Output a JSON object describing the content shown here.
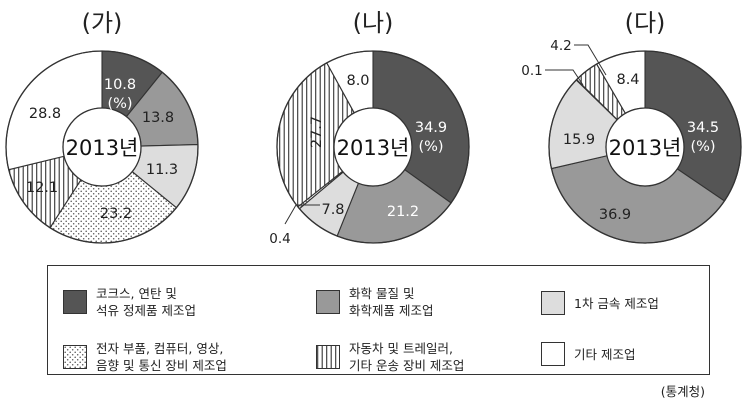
{
  "chart_data": [
    {
      "type": "pie",
      "title": "(가)",
      "center_label": "2013년",
      "unit_label": "(%)",
      "slices": [
        {
          "category": "coke_petroleum",
          "value": 10.8
        },
        {
          "category": "chemical",
          "value": 13.8
        },
        {
          "category": "primary_metal",
          "value": 11.3
        },
        {
          "category": "electronic",
          "value": 23.2
        },
        {
          "category": "automobile",
          "value": 12.1
        },
        {
          "category": "other",
          "value": 28.8
        }
      ]
    },
    {
      "type": "pie",
      "title": "(나)",
      "center_label": "2013년",
      "unit_label": "(%)",
      "slices": [
        {
          "category": "coke_petroleum",
          "value": 34.9
        },
        {
          "category": "chemical",
          "value": 21.2
        },
        {
          "category": "primary_metal",
          "value": 7.8
        },
        {
          "category": "electronic",
          "value": 0.4
        },
        {
          "category": "automobile",
          "value": 27.7
        },
        {
          "category": "other",
          "value": 8.0
        }
      ]
    },
    {
      "type": "pie",
      "title": "(다)",
      "center_label": "2013년",
      "unit_label": "(%)",
      "slices": [
        {
          "category": "coke_petroleum",
          "value": 34.5
        },
        {
          "category": "chemical",
          "value": 36.9
        },
        {
          "category": "primary_metal",
          "value": 15.9
        },
        {
          "category": "electronic",
          "value": 0.1
        },
        {
          "category": "automobile",
          "value": 4.2
        },
        {
          "category": "other",
          "value": 8.4
        }
      ]
    }
  ],
  "legend": [
    {
      "key": "coke_petroleum",
      "label_line1": "코크스, 연탄 및",
      "label_line2": "석유 정제품 제조업",
      "fill": "dark"
    },
    {
      "key": "chemical",
      "label_line1": "화학 물질 및",
      "label_line2": "화학제품 제조업",
      "fill": "medium"
    },
    {
      "key": "primary_metal",
      "label_line1": "1차 금속 제조업",
      "label_line2": "",
      "fill": "light"
    },
    {
      "key": "electronic",
      "label_line1": "전자 부품, 컴퓨터, 영상,",
      "label_line2": "음향 및 통신 장비 제조업",
      "fill": "dots"
    },
    {
      "key": "automobile",
      "label_line1": "자동차 및 트레일러,",
      "label_line2": "기타 운송 장비 제조업",
      "fill": "vlines"
    },
    {
      "key": "other",
      "label_line1": "기타 제조업",
      "label_line2": "",
      "fill": "white"
    }
  ],
  "colors": {
    "dark": "#555555",
    "medium": "#999999",
    "light": "#dddddd",
    "white": "#ffffff",
    "stroke": "#333333"
  },
  "source": "(통계청)"
}
